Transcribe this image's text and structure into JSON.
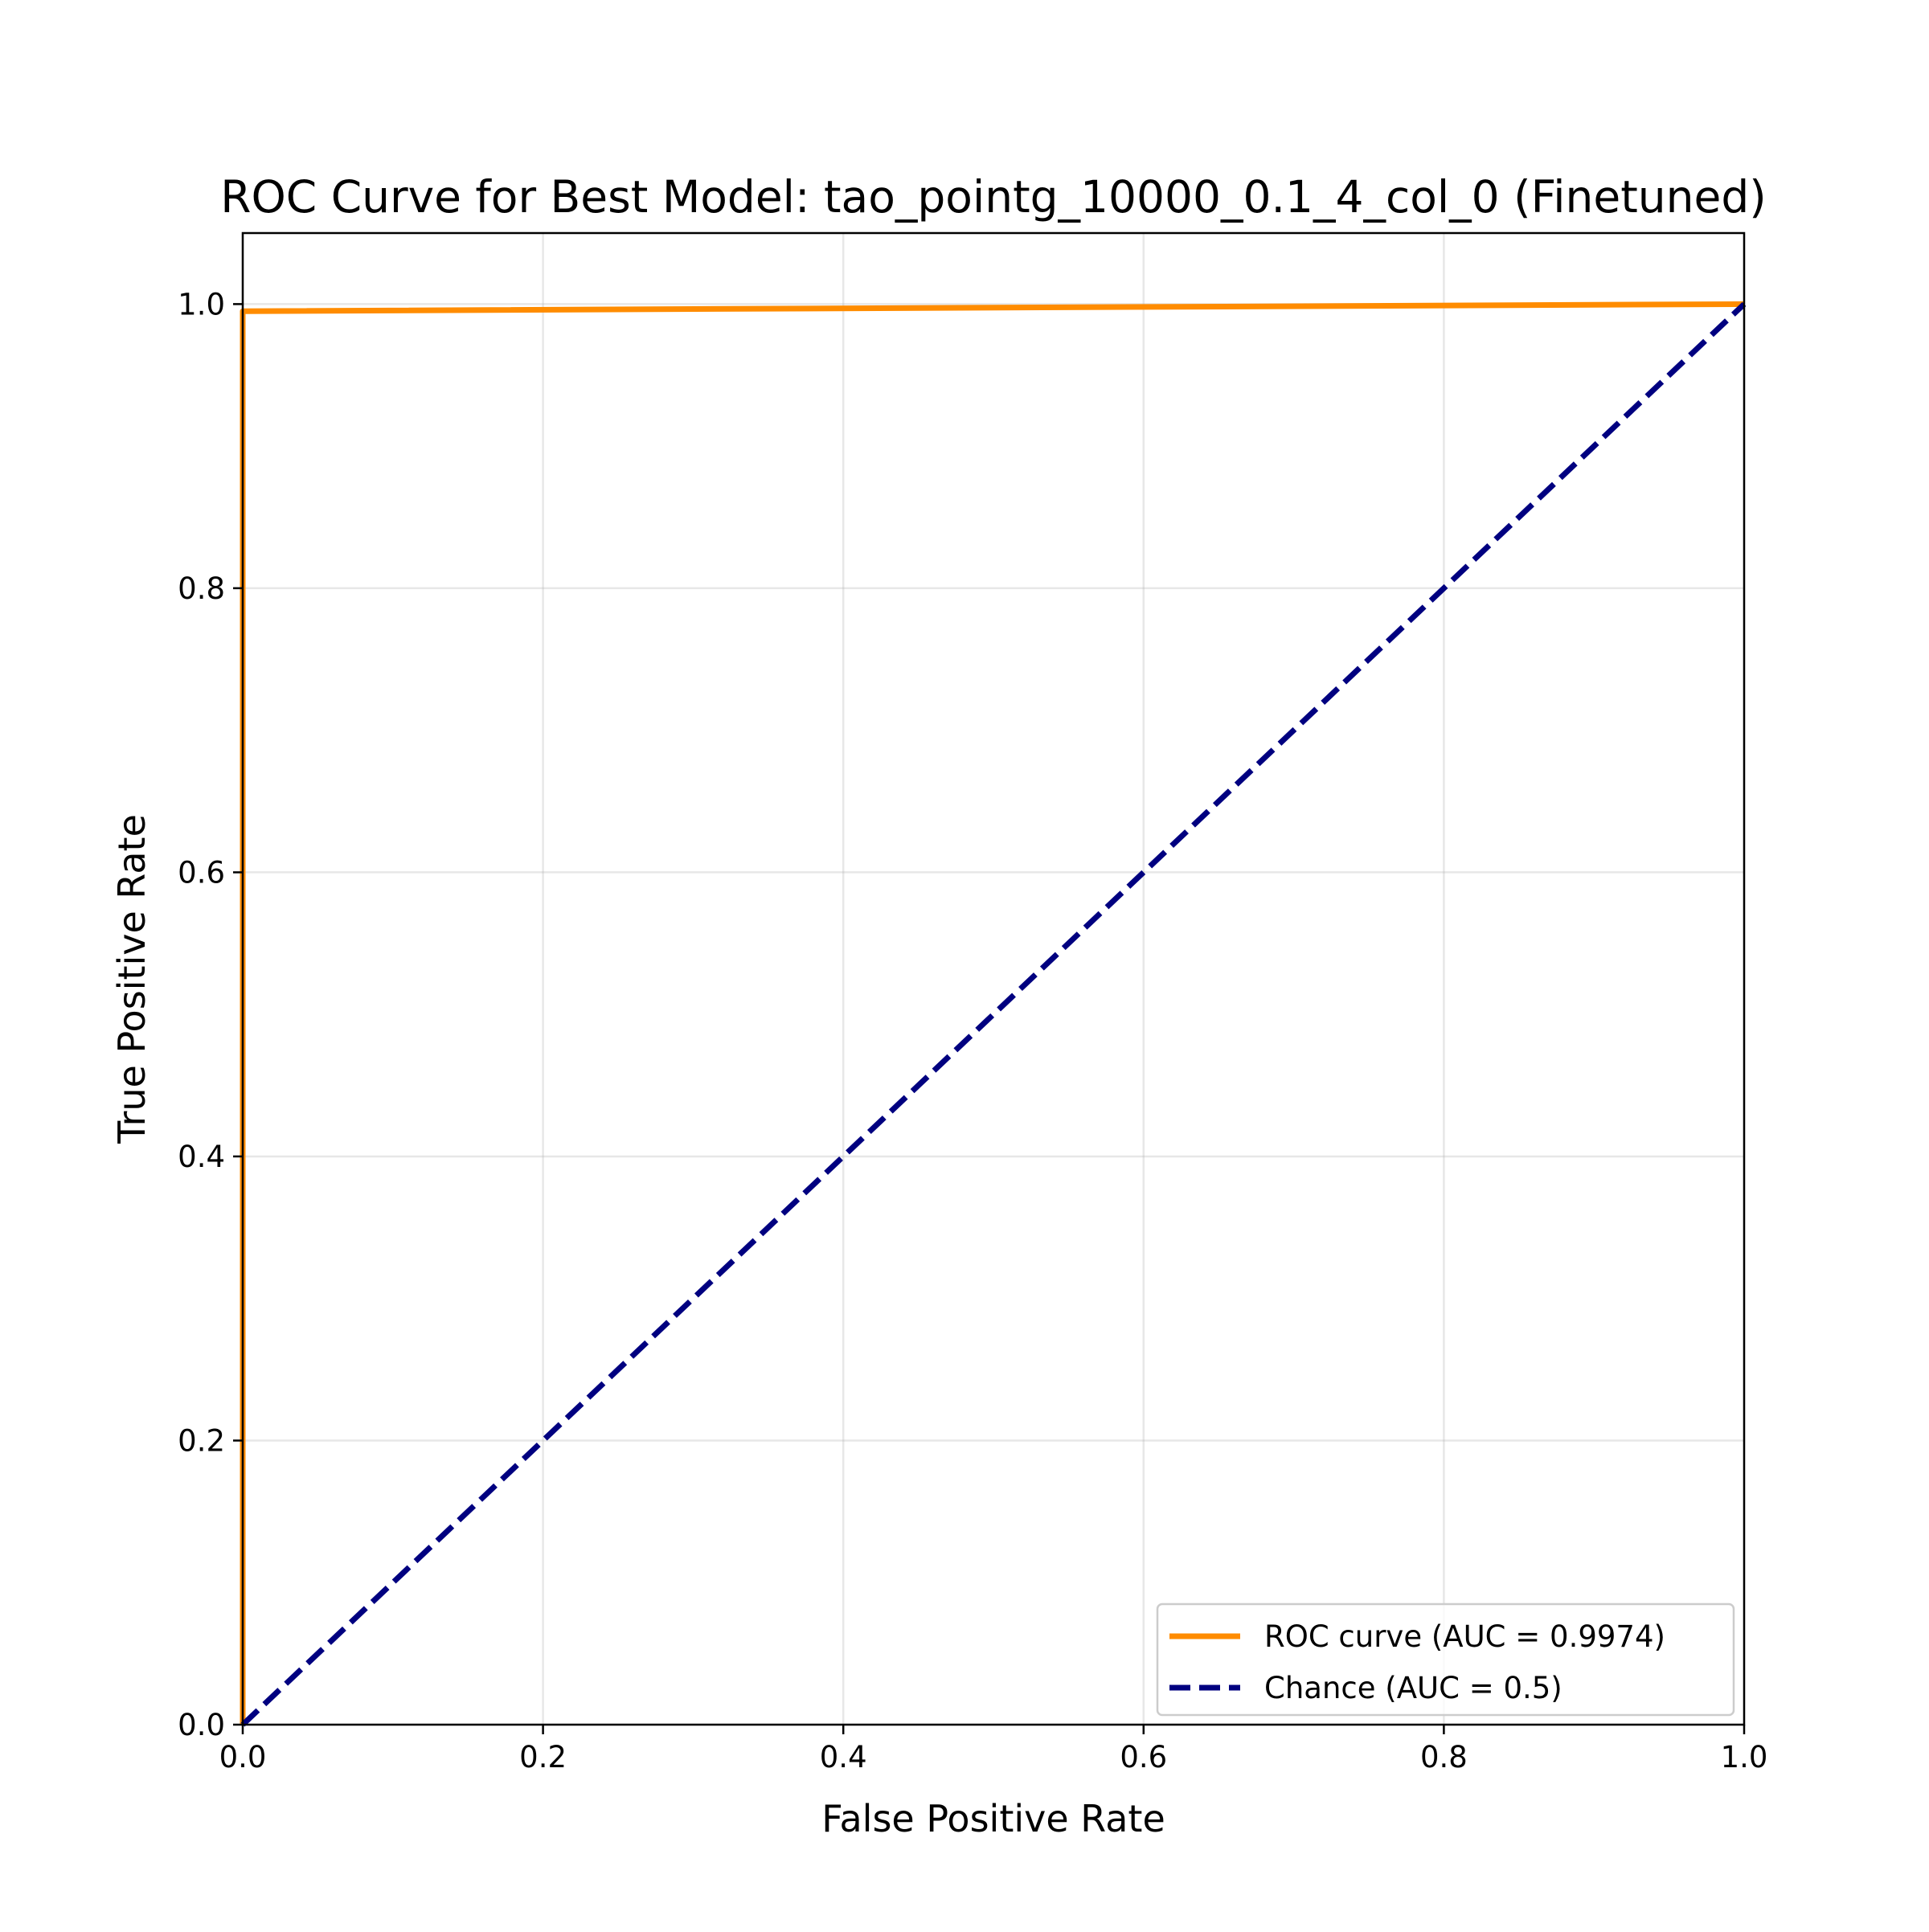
{
  "chart_data": {
    "type": "line",
    "title": "ROC Curve for Best Model: tao_pointg_10000_0.1_4_col_0 (Finetuned)",
    "xlabel": "False Positive Rate",
    "ylabel": "True Positive Rate",
    "xlim": [
      0.0,
      1.0
    ],
    "ylim": [
      0.0,
      1.05
    ],
    "xticks": [
      "0.0",
      "0.2",
      "0.4",
      "0.6",
      "0.8",
      "1.0"
    ],
    "yticks": [
      "0.0",
      "0.2",
      "0.4",
      "0.6",
      "0.8",
      "1.0"
    ],
    "grid": true,
    "legend_position": "lower-right",
    "series": [
      {
        "name": "ROC curve (AUC = 0.9974)",
        "color": "#ff8c00",
        "style": "solid",
        "x": [
          0.0,
          0.0,
          1.0
        ],
        "y": [
          0.0,
          0.995,
          1.0
        ]
      },
      {
        "name": "Chance (AUC = 0.5)",
        "color": "#000080",
        "style": "dashed",
        "x": [
          0.0,
          1.0
        ],
        "y": [
          0.0,
          1.0
        ]
      }
    ]
  }
}
